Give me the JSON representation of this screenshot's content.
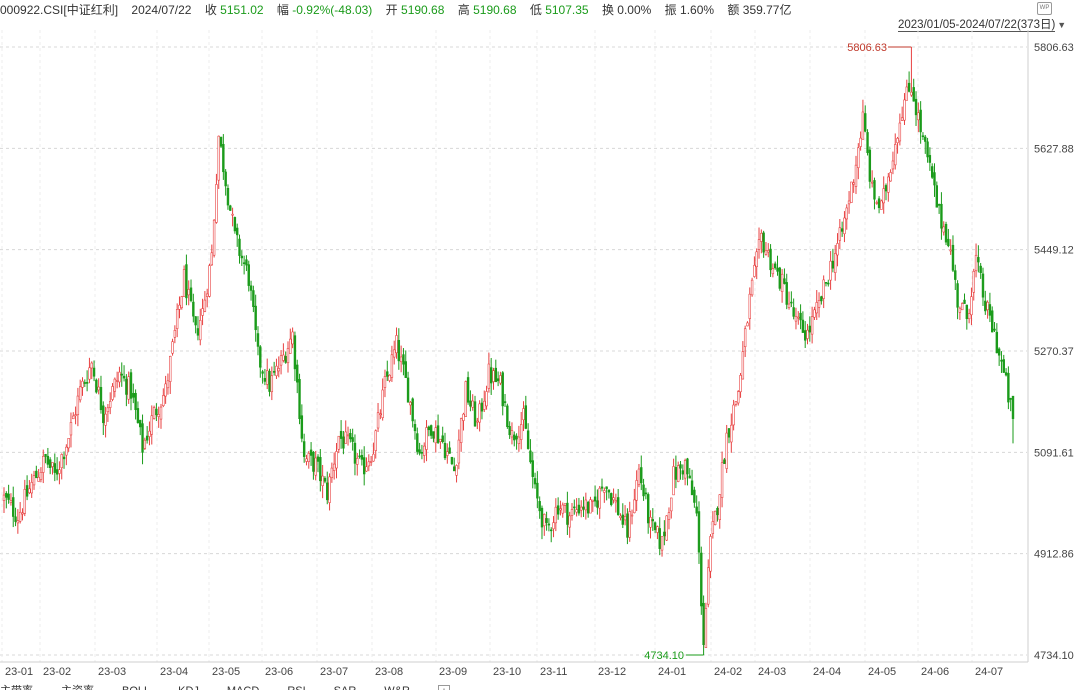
{
  "header": {
    "code": "000922.CSI[中证红利]",
    "date": "2024/07/22",
    "close_label": "收",
    "close_value": "5151.02",
    "change_label": "幅",
    "change_value": "-0.92%(-48.03)",
    "open_label": "开",
    "open_value": "5190.68",
    "high_label": "高",
    "high_value": "5190.68",
    "low_label": "低",
    "low_value": "5107.35",
    "turnover_label": "换",
    "turnover_value": "0.00%",
    "amplitude_label": "振",
    "amplitude_value": "1.60%",
    "amount_label": "额",
    "amount_value": "359.77亿"
  },
  "range": {
    "text": "2023/01/05-2024/07/22(373日)"
  },
  "corner_icon": "WP",
  "tabs": [
    "主带率",
    "主资率",
    "BOLL",
    "KDJ",
    "MACD",
    "RSI",
    "SAR",
    "W&R",
    "+"
  ],
  "colors": {
    "up": "#e84040",
    "down": "#1a9b1a",
    "grid": "#d8d8d8",
    "high_label": "#c0392b",
    "low_label": "#1a9b1a"
  },
  "chart_data": {
    "type": "candlestick",
    "yticks": [
      "5806.63",
      "5627.88",
      "5449.12",
      "5270.37",
      "5091.61",
      "4912.86",
      "4734.10"
    ],
    "ylim": [
      4734.1,
      5806.63
    ],
    "xticks": [
      "23-01",
      "23-02",
      "23-03",
      "23-04",
      "23-05",
      "23-06",
      "23-07",
      "23-08",
      "23-09",
      "23-10",
      "23-11",
      "23-12",
      "24-01",
      "24-02",
      "24-03",
      "24-04",
      "24-05",
      "24-06",
      "24-07"
    ],
    "high_annotation": "5806.63",
    "low_annotation": "4734.10",
    "grid": true,
    "anchors": [
      [
        0,
        5010
      ],
      [
        6,
        4980
      ],
      [
        12,
        5035
      ],
      [
        18,
        5080
      ],
      [
        22,
        5050
      ],
      [
        28,
        5120
      ],
      [
        33,
        5200
      ],
      [
        38,
        5250
      ],
      [
        43,
        5160
      ],
      [
        50,
        5230
      ],
      [
        55,
        5200
      ],
      [
        60,
        5100
      ],
      [
        65,
        5160
      ],
      [
        70,
        5200
      ],
      [
        78,
        5400
      ],
      [
        83,
        5300
      ],
      [
        86,
        5340
      ],
      [
        90,
        5440
      ],
      [
        93,
        5650
      ],
      [
        100,
        5470
      ],
      [
        106,
        5400
      ],
      [
        110,
        5260
      ],
      [
        115,
        5210
      ],
      [
        120,
        5250
      ],
      [
        125,
        5300
      ],
      [
        130,
        5080
      ],
      [
        135,
        5070
      ],
      [
        140,
        5020
      ],
      [
        145,
        5120
      ],
      [
        150,
        5100
      ],
      [
        155,
        5060
      ],
      [
        160,
        5100
      ],
      [
        165,
        5210
      ],
      [
        170,
        5280
      ],
      [
        175,
        5200
      ],
      [
        180,
        5090
      ],
      [
        185,
        5140
      ],
      [
        190,
        5110
      ],
      [
        195,
        5060
      ],
      [
        200,
        5200
      ],
      [
        205,
        5140
      ],
      [
        210,
        5230
      ],
      [
        215,
        5210
      ],
      [
        220,
        5120
      ],
      [
        225,
        5150
      ],
      [
        230,
        5020
      ],
      [
        235,
        4950
      ],
      [
        240,
        5000
      ],
      [
        245,
        4980
      ],
      [
        250,
        5000
      ],
      [
        255,
        4990
      ],
      [
        260,
        5040
      ],
      [
        265,
        5000
      ],
      [
        270,
        4950
      ],
      [
        275,
        5060
      ],
      [
        280,
        4960
      ],
      [
        285,
        4930
      ],
      [
        290,
        5050
      ],
      [
        295,
        5070
      ],
      [
        300,
        4980
      ],
      [
        303,
        4760
      ],
      [
        306,
        4930
      ],
      [
        309,
        5000
      ],
      [
        313,
        5120
      ],
      [
        318,
        5200
      ],
      [
        323,
        5360
      ],
      [
        328,
        5470
      ],
      [
        333,
        5420
      ],
      [
        338,
        5380
      ],
      [
        343,
        5320
      ],
      [
        348,
        5300
      ],
      [
        353,
        5350
      ],
      [
        358,
        5420
      ],
      [
        363,
        5480
      ],
      [
        368,
        5580
      ],
      [
        372,
        5680
      ],
      [
        376,
        5550
      ],
      [
        380,
        5520
      ],
      [
        385,
        5620
      ],
      [
        389,
        5700
      ],
      [
        393,
        5740
      ],
      [
        397,
        5660
      ],
      [
        401,
        5590
      ],
      [
        405,
        5510
      ],
      [
        409,
        5470
      ],
      [
        413,
        5360
      ],
      [
        417,
        5330
      ],
      [
        421,
        5430
      ],
      [
        425,
        5350
      ],
      [
        429,
        5300
      ],
      [
        433,
        5230
      ],
      [
        435,
        5190
      ],
      [
        437,
        5151
      ]
    ]
  }
}
